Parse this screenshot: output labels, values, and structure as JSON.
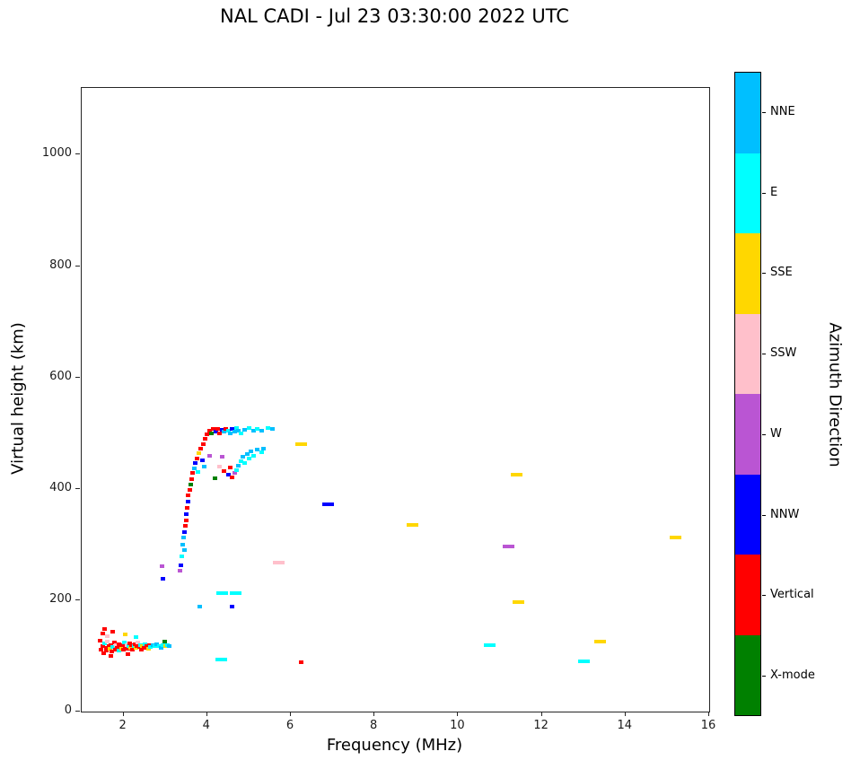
{
  "chart_data": {
    "type": "scatter",
    "title": "NAL CADI - Jul 23 03:30:00 2022 UTC",
    "xlabel": "Frequency (MHz)",
    "ylabel": "Virtual height (km)",
    "colorbar_label": "Azimuth Direction",
    "xlim": [
      1,
      16
    ],
    "ylim": [
      0,
      1120
    ],
    "x_ticks": [
      2,
      4,
      6,
      8,
      10,
      12,
      14,
      16
    ],
    "y_ticks": [
      0,
      200,
      400,
      600,
      800,
      1000
    ],
    "grid": false,
    "legend_position": "right-colorbar",
    "directions": [
      {
        "name": "NNE",
        "color": "#00BFFF"
      },
      {
        "name": "E",
        "color": "#00FFFF"
      },
      {
        "name": "SSE",
        "color": "#FFD700"
      },
      {
        "name": "SSW",
        "color": "#FFC0CB"
      },
      {
        "name": "W",
        "color": "#BA55D3"
      },
      {
        "name": "NNW",
        "color": "#0000FF"
      },
      {
        "name": "Vertical",
        "color": "#FF0000"
      },
      {
        "name": "X-mode",
        "color": "#008000"
      }
    ],
    "points_format": "[freq_MHz, virtual_height_km, direction_index, wide_flag?]",
    "points": [
      [
        1.45,
        128,
        6
      ],
      [
        1.47,
        112,
        6
      ],
      [
        1.5,
        118,
        6
      ],
      [
        1.52,
        105,
        6
      ],
      [
        1.55,
        122,
        1
      ],
      [
        1.58,
        115,
        6
      ],
      [
        1.6,
        110,
        6
      ],
      [
        1.62,
        126,
        3
      ],
      [
        1.65,
        118,
        6
      ],
      [
        1.68,
        113,
        2
      ],
      [
        1.7,
        120,
        6
      ],
      [
        1.72,
        108,
        6
      ],
      [
        1.75,
        116,
        1
      ],
      [
        1.78,
        124,
        6
      ],
      [
        1.8,
        112,
        6
      ],
      [
        1.82,
        119,
        3
      ],
      [
        1.85,
        115,
        6
      ],
      [
        1.88,
        110,
        1
      ],
      [
        1.9,
        121,
        6
      ],
      [
        1.92,
        117,
        6
      ],
      [
        1.95,
        113,
        2
      ],
      [
        1.98,
        119,
        6
      ],
      [
        2.0,
        111,
        6
      ],
      [
        2.02,
        124,
        1
      ],
      [
        2.05,
        116,
        6
      ],
      [
        2.08,
        120,
        3
      ],
      [
        2.1,
        113,
        6
      ],
      [
        2.12,
        118,
        1
      ],
      [
        2.15,
        122,
        6
      ],
      [
        2.18,
        115,
        2
      ],
      [
        2.2,
        119,
        6
      ],
      [
        2.22,
        111,
        6
      ],
      [
        2.25,
        117,
        1
      ],
      [
        2.28,
        121,
        6
      ],
      [
        2.3,
        114,
        2
      ],
      [
        2.32,
        118,
        6
      ],
      [
        2.35,
        124,
        3
      ],
      [
        2.38,
        116,
        6
      ],
      [
        2.4,
        120,
        1
      ],
      [
        2.42,
        112,
        6
      ],
      [
        2.45,
        118,
        2
      ],
      [
        2.5,
        115,
        6
      ],
      [
        2.52,
        121,
        1
      ],
      [
        2.55,
        117,
        6
      ],
      [
        2.6,
        113,
        2
      ],
      [
        2.62,
        119,
        6
      ],
      [
        2.65,
        116,
        1
      ],
      [
        2.7,
        120,
        0
      ],
      [
        2.75,
        117,
        1
      ],
      [
        2.8,
        121,
        0
      ],
      [
        2.85,
        118,
        1
      ],
      [
        2.9,
        115,
        0
      ],
      [
        2.95,
        119,
        1
      ],
      [
        3.0,
        117,
        2
      ],
      [
        3.05,
        120,
        1
      ],
      [
        3.1,
        118,
        0
      ],
      [
        1.5,
        140,
        6
      ],
      [
        1.62,
        136,
        3
      ],
      [
        1.75,
        143,
        6
      ],
      [
        2.05,
        138,
        2
      ],
      [
        2.3,
        133,
        1
      ],
      [
        1.7,
        100,
        6
      ],
      [
        2.1,
        103,
        6
      ],
      [
        2.98,
        126,
        7
      ],
      [
        1.55,
        148,
        6
      ],
      [
        2.93,
        261,
        4
      ],
      [
        2.95,
        238,
        5
      ],
      [
        3.35,
        253,
        4
      ],
      [
        3.38,
        262,
        5
      ],
      [
        3.4,
        278,
        1
      ],
      [
        3.45,
        290,
        0
      ],
      [
        3.42,
        300,
        0
      ],
      [
        3.44,
        312,
        0
      ],
      [
        3.46,
        322,
        5
      ],
      [
        3.48,
        333,
        6
      ],
      [
        3.5,
        344,
        6
      ],
      [
        3.5,
        355,
        5
      ],
      [
        3.52,
        366,
        6
      ],
      [
        3.55,
        377,
        5
      ],
      [
        3.55,
        388,
        6
      ],
      [
        3.58,
        398,
        6
      ],
      [
        3.6,
        408,
        7
      ],
      [
        3.62,
        418,
        6
      ],
      [
        3.65,
        428,
        6
      ],
      [
        3.7,
        437,
        0
      ],
      [
        3.72,
        446,
        5
      ],
      [
        3.75,
        455,
        6
      ],
      [
        3.78,
        430,
        1
      ],
      [
        3.8,
        464,
        2
      ],
      [
        3.85,
        472,
        6
      ],
      [
        3.88,
        452,
        5
      ],
      [
        3.9,
        481,
        6
      ],
      [
        3.92,
        440,
        0
      ],
      [
        3.95,
        490,
        6
      ],
      [
        4.0,
        498,
        6
      ],
      [
        3.82,
        189,
        0
      ],
      [
        4.05,
        505,
        6
      ],
      [
        4.05,
        459,
        4
      ],
      [
        4.1,
        500,
        7
      ],
      [
        4.15,
        507,
        6
      ],
      [
        4.2,
        503,
        5
      ],
      [
        4.18,
        419,
        7
      ],
      [
        4.25,
        508,
        6
      ],
      [
        4.3,
        500,
        6
      ],
      [
        4.3,
        440,
        3
      ],
      [
        4.35,
        506,
        5
      ],
      [
        4.35,
        458,
        4
      ],
      [
        4.4,
        502,
        0
      ],
      [
        4.4,
        432,
        6
      ],
      [
        4.45,
        508,
        6
      ],
      [
        4.5,
        504,
        1
      ],
      [
        4.5,
        426,
        5
      ],
      [
        4.55,
        500,
        0
      ],
      [
        4.55,
        438,
        6
      ],
      [
        4.6,
        507,
        5
      ],
      [
        4.6,
        420,
        6
      ],
      [
        4.65,
        503,
        0
      ],
      [
        4.65,
        428,
        4
      ],
      [
        4.7,
        509,
        1
      ],
      [
        4.7,
        433,
        1
      ],
      [
        4.75,
        505,
        0
      ],
      [
        4.75,
        442,
        0
      ],
      [
        4.8,
        500,
        1
      ],
      [
        4.8,
        450,
        1
      ],
      [
        4.85,
        458,
        0
      ],
      [
        4.9,
        506,
        0
      ],
      [
        4.9,
        447,
        1
      ],
      [
        4.95,
        462,
        0
      ],
      [
        5.0,
        509,
        1
      ],
      [
        5.0,
        455,
        1
      ],
      [
        5.05,
        468,
        0
      ],
      [
        5.1,
        505,
        0
      ],
      [
        5.1,
        460,
        1
      ],
      [
        5.2,
        508,
        1
      ],
      [
        5.2,
        470,
        0
      ],
      [
        5.3,
        504,
        0
      ],
      [
        5.3,
        466,
        1
      ],
      [
        5.35,
        472,
        0
      ],
      [
        5.45,
        509,
        1
      ],
      [
        5.55,
        507,
        0
      ],
      [
        4.33,
        93,
        1,
        1
      ],
      [
        4.35,
        212,
        1,
        1
      ],
      [
        4.69,
        212,
        1,
        1
      ],
      [
        4.6,
        188,
        5,
        0
      ],
      [
        5.72,
        268,
        3,
        1
      ],
      [
        6.25,
        480,
        2,
        1
      ],
      [
        6.25,
        88,
        6,
        0
      ],
      [
        6.9,
        373,
        5,
        1
      ],
      [
        8.9,
        335,
        2,
        1
      ],
      [
        10.75,
        120,
        1,
        1
      ],
      [
        11.2,
        297,
        4,
        1
      ],
      [
        11.4,
        425,
        2,
        1
      ],
      [
        11.45,
        197,
        2,
        1
      ],
      [
        13.0,
        90,
        1,
        1
      ],
      [
        13.4,
        125,
        2,
        1
      ],
      [
        15.2,
        312,
        2,
        1
      ]
    ]
  }
}
